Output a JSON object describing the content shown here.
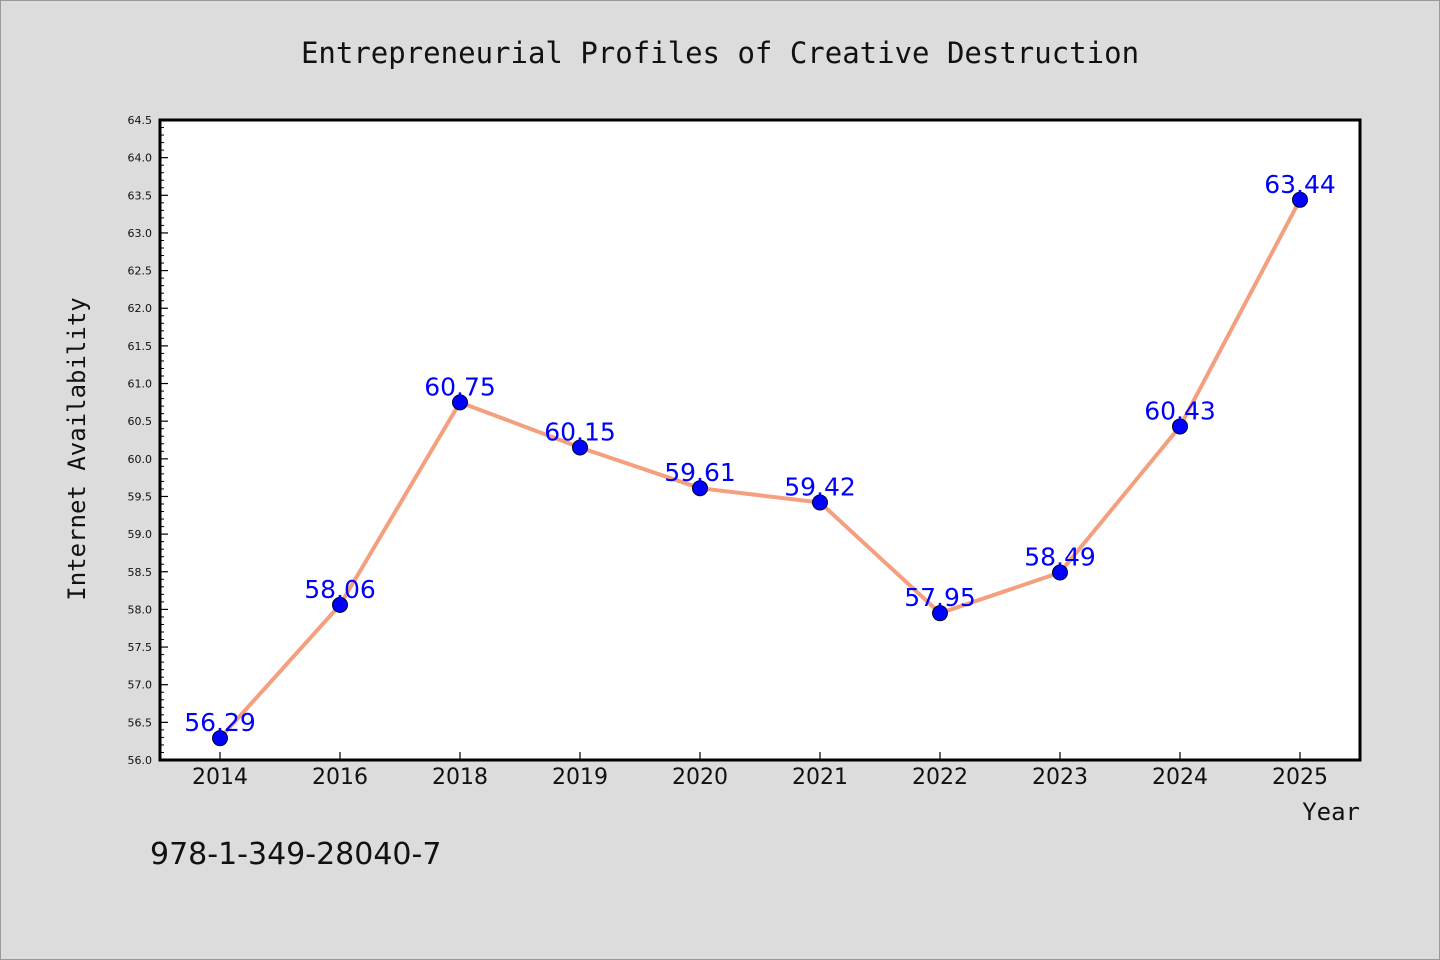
{
  "chart_data": {
    "type": "line",
    "title": "Entrepreneurial Profiles of Creative Destruction",
    "xlabel": "Year",
    "ylabel": "Internet Availability",
    "categories": [
      "2014",
      "2016",
      "2018",
      "2019",
      "2020",
      "2021",
      "2022",
      "2023",
      "2024",
      "2025"
    ],
    "series": [
      {
        "values": [
          56.29,
          58.06,
          60.75,
          60.15,
          59.61,
          59.42,
          57.95,
          58.49,
          60.43,
          63.44
        ],
        "labels": [
          "56.29",
          "58.06",
          "60.75",
          "60.15",
          "59.61",
          "59.42",
          "57.95",
          "58.49",
          "60.43",
          "63.44"
        ]
      }
    ],
    "ylim": [
      56.0,
      64.5
    ],
    "yticks": [
      "56.0",
      "56.5",
      "57.0",
      "57.5",
      "58.0",
      "58.5",
      "59.0",
      "59.5",
      "60.0",
      "60.5",
      "61.0",
      "61.5",
      "62.0",
      "62.5",
      "63.0",
      "63.5",
      "64.0",
      "64.5"
    ],
    "grid": false,
    "legend": "none",
    "colors": {
      "line": "#f4a07e",
      "marker": "#0000ff",
      "data_label": "#0000ff",
      "plot_background": "#ffffff",
      "figure_background": "#dcdcdc"
    }
  },
  "footnote": "978-1-349-28040-7"
}
